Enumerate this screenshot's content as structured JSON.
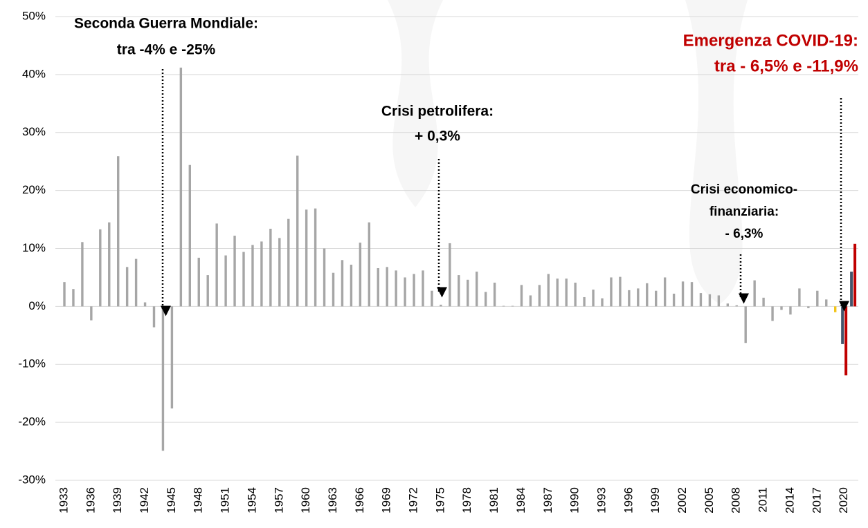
{
  "chart_data": {
    "type": "bar",
    "categories": [
      "1933",
      null,
      null,
      "1936",
      null,
      null,
      "1939",
      null,
      null,
      "1942",
      null,
      null,
      "1945",
      null,
      null,
      "1948",
      null,
      null,
      "1951",
      null,
      null,
      "1954",
      null,
      null,
      "1957",
      null,
      null,
      "1960",
      null,
      null,
      "1963",
      null,
      null,
      "1966",
      null,
      null,
      "1969",
      null,
      null,
      "1972",
      null,
      null,
      "1975",
      null,
      null,
      "1978",
      null,
      null,
      "1981",
      null,
      null,
      "1984",
      null,
      null,
      "1987",
      null,
      null,
      "1990",
      null,
      null,
      "1993",
      null,
      null,
      "1996",
      null,
      null,
      "1999",
      null,
      null,
      "2002",
      null,
      null,
      "2005",
      null,
      null,
      "2008",
      null,
      null,
      "2011",
      null,
      null,
      "2014",
      null,
      null,
      "2017",
      null,
      null,
      "2020",
      null
    ],
    "series": [
      {
        "color": "#a6a6a6",
        "values": [
          4.2,
          3.0,
          11.1,
          -2.4,
          13.3,
          14.5,
          25.9,
          6.8,
          8.2,
          0.7,
          -3.6,
          -24.9,
          -17.6,
          41.2,
          24.4,
          8.4,
          5.4,
          14.3,
          8.8,
          12.2,
          9.4,
          10.6,
          11.2,
          13.4,
          11.8,
          15.1,
          26.0,
          16.7,
          16.9,
          10.0,
          5.8,
          8.0,
          7.2,
          11.0,
          14.5,
          6.6,
          6.8,
          6.2,
          5.0,
          5.6,
          6.2,
          2.7,
          0.3,
          10.9,
          5.4,
          4.6,
          6.0,
          2.5,
          4.1,
          0.1,
          0.1,
          3.7,
          1.9,
          3.7,
          5.6,
          4.8,
          4.8,
          4.1,
          1.6,
          2.9,
          1.4,
          5.0,
          5.1,
          2.8,
          3.1,
          4.0,
          2.7,
          5.0,
          2.2,
          4.3,
          4.2,
          2.3,
          2.1,
          1.9,
          0.5,
          0.2,
          -6.3,
          4.5,
          1.5,
          -2.5,
          -0.6,
          -1.4,
          3.1,
          -0.3,
          2.7,
          1.2,
          null,
          null,
          null
        ]
      },
      {
        "color": "#f2c418",
        "values": [
          null,
          null,
          null,
          null,
          null,
          null,
          null,
          null,
          null,
          null,
          null,
          null,
          null,
          null,
          null,
          null,
          null,
          null,
          null,
          null,
          null,
          null,
          null,
          null,
          null,
          null,
          null,
          null,
          null,
          null,
          null,
          null,
          null,
          null,
          null,
          null,
          null,
          null,
          null,
          null,
          null,
          null,
          null,
          null,
          null,
          null,
          null,
          null,
          null,
          null,
          null,
          null,
          null,
          null,
          null,
          null,
          null,
          null,
          null,
          null,
          null,
          null,
          null,
          null,
          null,
          null,
          null,
          null,
          null,
          null,
          null,
          null,
          null,
          null,
          null,
          null,
          null,
          null,
          null,
          null,
          null,
          null,
          null,
          null,
          null,
          null,
          -1.0,
          null,
          null
        ]
      },
      {
        "color": "#44546a",
        "values": [
          null,
          null,
          null,
          null,
          null,
          null,
          null,
          null,
          null,
          null,
          null,
          null,
          null,
          null,
          null,
          null,
          null,
          null,
          null,
          null,
          null,
          null,
          null,
          null,
          null,
          null,
          null,
          null,
          null,
          null,
          null,
          null,
          null,
          null,
          null,
          null,
          null,
          null,
          null,
          null,
          null,
          null,
          null,
          null,
          null,
          null,
          null,
          null,
          null,
          null,
          null,
          null,
          null,
          null,
          null,
          null,
          null,
          null,
          null,
          null,
          null,
          null,
          null,
          null,
          null,
          null,
          null,
          null,
          null,
          null,
          null,
          null,
          null,
          null,
          null,
          null,
          null,
          null,
          null,
          null,
          null,
          null,
          null,
          null,
          null,
          null,
          null,
          -6.5,
          6.0
        ]
      },
      {
        "color": "#c00000",
        "values": [
          null,
          null,
          null,
          null,
          null,
          null,
          null,
          null,
          null,
          null,
          null,
          null,
          null,
          null,
          null,
          null,
          null,
          null,
          null,
          null,
          null,
          null,
          null,
          null,
          null,
          null,
          null,
          null,
          null,
          null,
          null,
          null,
          null,
          null,
          null,
          null,
          null,
          null,
          null,
          null,
          null,
          null,
          null,
          null,
          null,
          null,
          null,
          null,
          null,
          null,
          null,
          null,
          null,
          null,
          null,
          null,
          null,
          null,
          null,
          null,
          null,
          null,
          null,
          null,
          null,
          null,
          null,
          null,
          null,
          null,
          null,
          null,
          null,
          null,
          null,
          null,
          null,
          null,
          null,
          null,
          null,
          null,
          null,
          null,
          null,
          null,
          null,
          -11.9,
          10.8
        ]
      }
    ],
    "ylim": [
      -30,
      50
    ],
    "yticks": [
      {
        "value": -30,
        "label": "-30%"
      },
      {
        "value": -20,
        "label": "-20%"
      },
      {
        "value": -10,
        "label": "-10%"
      },
      {
        "value": 0,
        "label": "0%"
      },
      {
        "value": 10,
        "label": "10%"
      },
      {
        "value": 20,
        "label": "20%"
      },
      {
        "value": 30,
        "label": "30%"
      },
      {
        "value": 40,
        "label": "40%"
      },
      {
        "value": 50,
        "label": "50%"
      }
    ],
    "grid": true,
    "annotations": [
      {
        "lines": [
          "Seconda Guerra Mondiale:",
          "tra -4% e -25%"
        ],
        "color": "#000000"
      },
      {
        "lines": [
          "Crisi petrolifera:",
          "+ 0,3%"
        ],
        "color": "#000000"
      },
      {
        "lines": [
          "Crisi economico-",
          "finanziaria:",
          "- 6,3%"
        ],
        "color": "#000000"
      },
      {
        "lines": [
          "Emergenza COVID-19:",
          "tra - 6,5% e -11,9%"
        ],
        "color": "#c00000"
      }
    ]
  }
}
